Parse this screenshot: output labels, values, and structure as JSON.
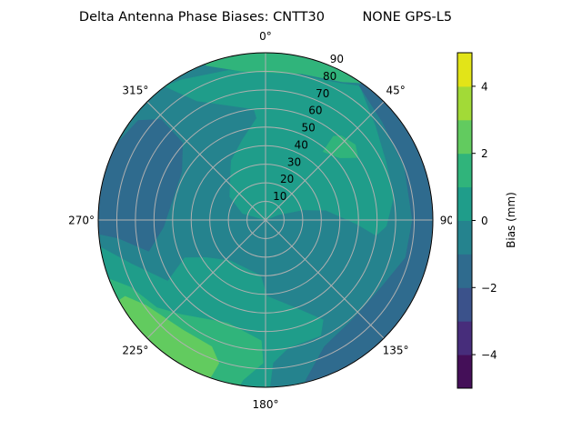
{
  "chart_data": {
    "type": "contour",
    "projection": "polar",
    "title": "Delta Antenna Phase Biases: CNTT30         NONE GPS-L5",
    "theta_direction": "clockwise",
    "theta_zero": "top",
    "theta_tick_labels": [
      "0°",
      "45°",
      "90°",
      "135°",
      "180°",
      "225°",
      "270°",
      "315°"
    ],
    "theta_ticks": [
      0,
      45,
      90,
      135,
      180,
      225,
      270,
      315
    ],
    "r_ticks": [
      10,
      20,
      30,
      40,
      50,
      60,
      70,
      80,
      90
    ],
    "r_tick_labels": [
      "10",
      "20",
      "30",
      "40",
      "50",
      "60",
      "70",
      "80",
      "90"
    ],
    "rlim": [
      0,
      90
    ],
    "grid": true,
    "colormap": "viridis",
    "levels": [
      -5,
      -4,
      -3,
      -2,
      -1,
      0,
      1,
      2,
      3,
      4,
      5
    ],
    "level_colors": [
      "#440f58",
      "#472d7b",
      "#3b528b",
      "#2f6b8e",
      "#25838e",
      "#1f9d8a",
      "#30b47b",
      "#62cb5f",
      "#a2da37",
      "#e2e418"
    ],
    "colorbar": {
      "label": "Bias (mm)",
      "ticks": [
        4,
        2,
        0,
        -2,
        -4
      ],
      "tick_labels": [
        "4",
        "2",
        "0",
        "−2",
        "−4"
      ],
      "range": [
        -5,
        5
      ]
    },
    "background_band": [
      -1,
      0
    ],
    "regions": [
      {
        "band": [
          0,
          1
        ],
        "points": [
          [
            329,
            88
          ],
          [
            346,
            83
          ],
          [
            0,
            80
          ],
          [
            14.5,
            80
          ],
          [
            29,
            84
          ],
          [
            35,
            88
          ],
          [
            49,
            78
          ],
          [
            64,
            72
          ],
          [
            80,
            70
          ],
          [
            93,
            65
          ],
          [
            98,
            60
          ],
          [
            92.5,
            49
          ],
          [
            81,
            33
          ],
          [
            75,
            21
          ],
          [
            68,
            7.5
          ],
          [
            0,
            0
          ],
          [
            286,
            13
          ],
          [
            303,
            23
          ],
          [
            330,
            37
          ],
          [
            344,
            45
          ],
          [
            355,
            55
          ],
          [
            354,
            60
          ],
          [
            330,
            74
          ],
          [
            323,
            90
          ]
        ]
      },
      {
        "band": [
          1,
          2
        ],
        "points": [
          [
            338,
            95
          ],
          [
            0,
            95
          ],
          [
            23,
            95
          ],
          [
            35,
            90
          ],
          [
            29,
            85
          ],
          [
            14,
            81
          ],
          [
            351,
            81
          ],
          [
            339,
            89
          ]
        ]
      },
      {
        "band": [
          1,
          2
        ],
        "points": [
          [
            40,
            48
          ],
          [
            39,
            58
          ],
          [
            42,
            61
          ],
          [
            50,
            63
          ],
          [
            56,
            60
          ],
          [
            50,
            52
          ]
        ]
      },
      {
        "band": [
          -2,
          -1
        ],
        "points": [
          [
            35,
            95
          ],
          [
            60,
            100
          ],
          [
            90,
            100
          ],
          [
            120,
            100
          ],
          [
            150,
            100
          ],
          [
            166,
            95
          ],
          [
            166,
            89
          ],
          [
            155,
            75
          ],
          [
            138,
            71
          ],
          [
            120,
            72
          ],
          [
            105,
            78
          ],
          [
            90,
            79
          ],
          [
            69,
            80
          ],
          [
            50,
            82
          ],
          [
            35,
            88
          ]
        ]
      },
      {
        "band": [
          -2,
          -1
        ],
        "points": [
          [
            265,
            95
          ],
          [
            280,
            95
          ],
          [
            297,
            90
          ],
          [
            308,
            87
          ],
          [
            314,
            78
          ],
          [
            313,
            61
          ],
          [
            300,
            52
          ],
          [
            284,
            51
          ],
          [
            266,
            55
          ],
          [
            255,
            65
          ],
          [
            263,
            80
          ],
          [
            265,
            89
          ]
        ]
      },
      {
        "band": [
          0,
          1
        ],
        "points": [
          [
            263,
            95
          ],
          [
            252,
            76
          ],
          [
            238,
            62
          ],
          [
            245,
            48
          ],
          [
            238,
            38
          ],
          [
            221,
            29
          ],
          [
            185,
            30
          ],
          [
            179,
            41
          ],
          [
            161,
            50
          ],
          [
            150,
            62
          ],
          [
            154.5,
            69
          ],
          [
            170,
            70
          ],
          [
            177,
            77
          ],
          [
            179,
            95
          ],
          [
            220,
            100
          ]
        ]
      },
      {
        "band": [
          1,
          2
        ],
        "points": [
          [
            252,
            95
          ],
          [
            243.5,
            81
          ],
          [
            231,
            75
          ],
          [
            221.5,
            68
          ],
          [
            200,
            59
          ],
          [
            182,
            65
          ],
          [
            181,
            77
          ],
          [
            188,
            87
          ],
          [
            190,
            95
          ],
          [
            220,
            100
          ]
        ]
      },
      {
        "band": [
          2,
          3
        ],
        "points": [
          [
            241,
            95
          ],
          [
            241.5,
            86
          ],
          [
            234.5,
            79
          ],
          [
            217,
            74
          ],
          [
            203,
            74
          ],
          [
            198,
            81
          ],
          [
            199,
            88
          ],
          [
            200,
            95
          ],
          [
            220,
            100
          ]
        ]
      }
    ]
  }
}
